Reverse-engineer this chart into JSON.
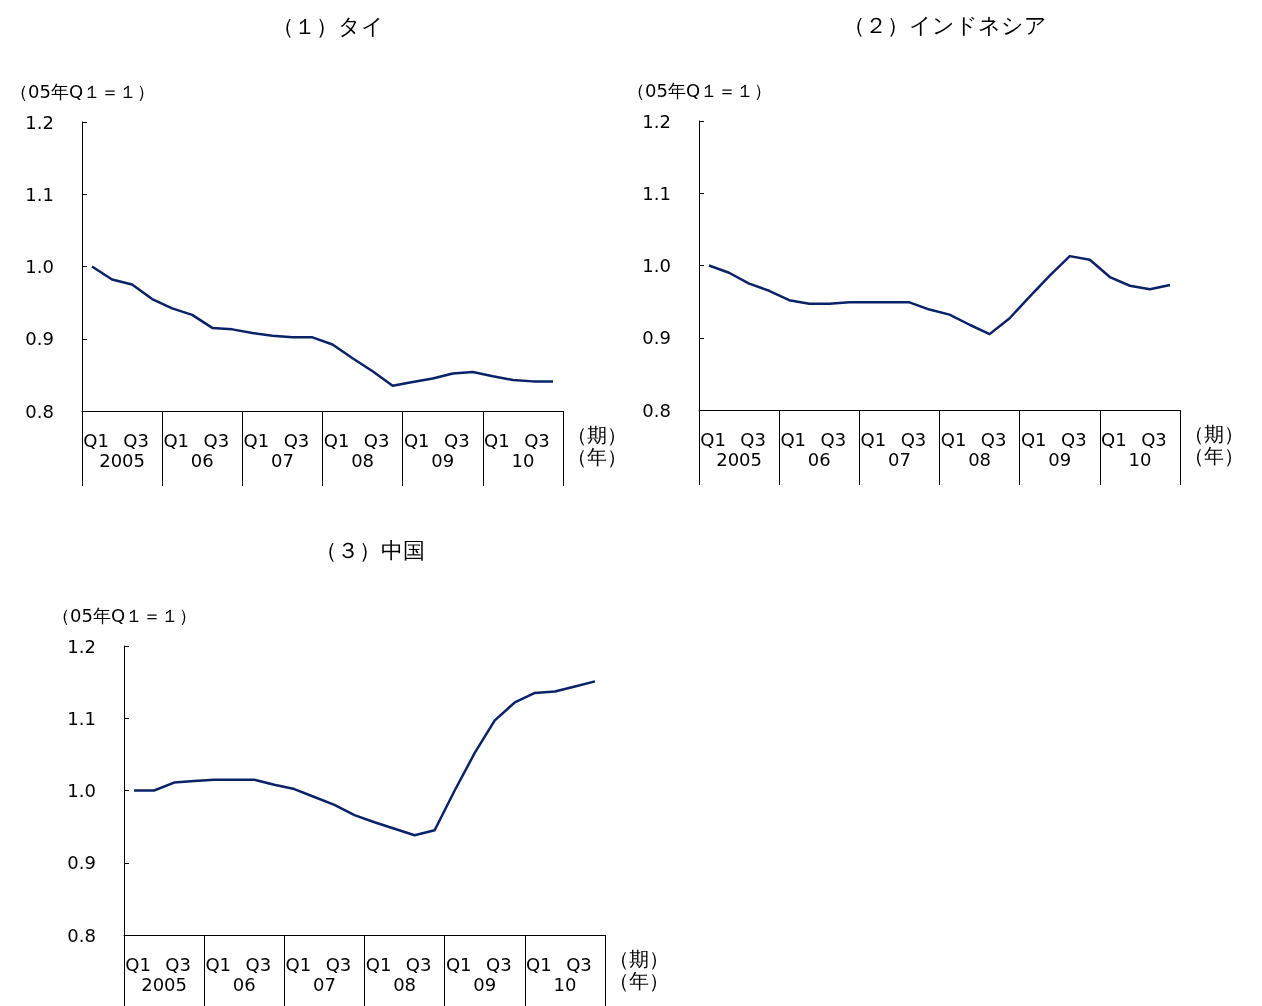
{
  "chart_data": [
    {
      "type": "line",
      "title": "（１）タイ",
      "ylabel": "（05年Q１＝１）",
      "xlabel": "（期）",
      "categories": [
        "Q1",
        null,
        "Q3",
        null,
        "Q1",
        null,
        "Q3",
        null,
        "Q1",
        null,
        "Q3",
        null,
        "Q1",
        null,
        "Q3",
        null,
        "Q1",
        null,
        "Q3",
        null,
        "Q1",
        null,
        "Q3",
        null
      ],
      "annotations": [
        "（年）",
        "2005",
        "06",
        "07",
        "08",
        "09",
        "10"
      ],
      "ylim": [
        0.8,
        1.2
      ],
      "yticks": [
        {
          "value": 0.8,
          "label": "0.8"
        },
        {
          "value": 0.9,
          "label": "0.9"
        },
        {
          "value": 1.0,
          "label": "1.0"
        },
        {
          "value": 1.1,
          "label": "1.1"
        },
        {
          "value": 1.2,
          "label": "1.2"
        }
      ],
      "grid": false,
      "marker": "none",
      "series": [
        {
          "color": "#0a2268",
          "values": [
            1.0,
            0.982,
            0.975,
            0.955,
            0.942,
            0.933,
            0.915,
            0.913,
            0.908,
            0.904,
            0.902,
            0.902,
            0.892,
            0.873,
            0.855,
            0.835,
            0.84,
            0.845,
            0.852,
            0.854,
            0.848,
            0.843,
            0.841,
            0.841
          ]
        }
      ]
    },
    {
      "type": "line",
      "title": "（２）インドネシア",
      "ylabel": "（05年Q１＝１）",
      "xlabel": "（期）",
      "categories": [
        "Q1",
        null,
        "Q3",
        null,
        "Q1",
        null,
        "Q3",
        null,
        "Q1",
        null,
        "Q3",
        null,
        "Q1",
        null,
        "Q3",
        null,
        "Q1",
        null,
        "Q3",
        null,
        "Q1",
        null,
        "Q3",
        null
      ],
      "annotations": [
        "（年）",
        "2005",
        "06",
        "07",
        "08",
        "09",
        "10"
      ],
      "ylim": [
        0.8,
        1.2
      ],
      "yticks": [
        {
          "value": 0.8,
          "label": "0.8"
        },
        {
          "value": 0.9,
          "label": "0.9"
        },
        {
          "value": 1.0,
          "label": "1.0"
        },
        {
          "value": 1.1,
          "label": "1.1"
        },
        {
          "value": 1.2,
          "label": "1.2"
        }
      ],
      "grid": false,
      "marker": "none",
      "series": [
        {
          "color": "#0a2268",
          "values": [
            1.0,
            0.99,
            0.975,
            0.965,
            0.952,
            0.947,
            0.947,
            0.949,
            0.949,
            0.949,
            0.949,
            0.939,
            0.932,
            0.918,
            0.905,
            0.927,
            0.957,
            0.986,
            1.013,
            1.008,
            0.984,
            0.972,
            0.967,
            0.973
          ]
        }
      ]
    },
    {
      "type": "line",
      "title": "（３）中国",
      "ylabel": "（05年Q１＝１）",
      "xlabel": "（期）",
      "categories": [
        "Q1",
        null,
        "Q3",
        null,
        "Q1",
        null,
        "Q3",
        null,
        "Q1",
        null,
        "Q3",
        null,
        "Q1",
        null,
        "Q3",
        null,
        "Q1",
        null,
        "Q3",
        null,
        "Q1",
        null,
        "Q3",
        null
      ],
      "annotations": [
        "（年）",
        "2005",
        "06",
        "07",
        "08",
        "09",
        "10"
      ],
      "ylim": [
        0.8,
        1.2
      ],
      "yticks": [
        {
          "value": 0.8,
          "label": "0.8"
        },
        {
          "value": 0.9,
          "label": "0.9"
        },
        {
          "value": 1.0,
          "label": "1.0"
        },
        {
          "value": 1.1,
          "label": "1.1"
        },
        {
          "value": 1.2,
          "label": "1.2"
        }
      ],
      "grid": false,
      "marker": "none",
      "series": [
        {
          "color": "#0a2268",
          "values": [
            1.0,
            1.0,
            1.011,
            1.013,
            1.015,
            1.015,
            1.015,
            1.008,
            1.002,
            0.991,
            0.98,
            0.966,
            0.956,
            0.947,
            0.938,
            0.945,
            1.0,
            1.052,
            1.097,
            1.122,
            1.135,
            1.137,
            1.144,
            1.151
          ]
        }
      ]
    }
  ]
}
